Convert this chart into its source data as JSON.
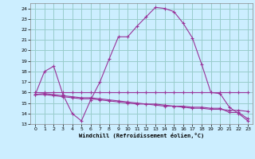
{
  "xlabel": "Windchill (Refroidissement éolien,°C)",
  "background_color": "#cceeff",
  "grid_color": "#99cccc",
  "line_color": "#993399",
  "xlim": [
    -0.5,
    23.5
  ],
  "ylim": [
    13,
    24.5
  ],
  "yticks": [
    13,
    14,
    15,
    16,
    17,
    18,
    19,
    20,
    21,
    22,
    23,
    24
  ],
  "xticks": [
    0,
    1,
    2,
    3,
    4,
    5,
    6,
    7,
    8,
    9,
    10,
    11,
    12,
    13,
    14,
    15,
    16,
    17,
    18,
    19,
    20,
    21,
    22,
    23
  ],
  "series": [
    {
      "x": [
        0,
        1,
        2,
        3,
        4,
        5,
        6,
        7,
        8,
        9,
        10,
        11,
        12,
        13,
        14,
        15,
        16,
        17,
        18,
        19,
        20,
        21,
        22,
        23
      ],
      "y": [
        15.8,
        18.0,
        18.5,
        15.8,
        14.0,
        13.3,
        15.3,
        17.0,
        19.2,
        21.3,
        21.3,
        22.3,
        23.2,
        24.1,
        24.0,
        23.7,
        22.6,
        21.2,
        18.7,
        16.0,
        15.9,
        14.6,
        14.0,
        13.3
      ]
    },
    {
      "x": [
        0,
        1,
        2,
        3,
        4,
        5,
        6,
        7,
        8,
        9,
        10,
        11,
        12,
        13,
        14,
        15,
        16,
        17,
        18,
        19,
        20,
        21,
        22,
        23
      ],
      "y": [
        16.0,
        16.0,
        16.0,
        16.0,
        16.0,
        16.0,
        16.0,
        16.0,
        16.0,
        16.0,
        16.0,
        16.0,
        16.0,
        16.0,
        16.0,
        16.0,
        16.0,
        16.0,
        16.0,
        16.0,
        16.0,
        16.0,
        16.0,
        16.0
      ]
    },
    {
      "x": [
        0,
        1,
        2,
        3,
        4,
        5,
        6,
        7,
        8,
        9,
        10,
        11,
        12,
        13,
        14,
        15,
        16,
        17,
        18,
        19,
        20,
        21,
        22,
        23
      ],
      "y": [
        15.8,
        15.8,
        15.7,
        15.6,
        15.5,
        15.4,
        15.4,
        15.3,
        15.2,
        15.1,
        15.0,
        14.9,
        14.9,
        14.8,
        14.7,
        14.7,
        14.6,
        14.5,
        14.5,
        14.4,
        14.4,
        14.3,
        14.3,
        14.2
      ]
    },
    {
      "x": [
        0,
        1,
        2,
        3,
        4,
        5,
        6,
        7,
        8,
        9,
        10,
        11,
        12,
        13,
        14,
        15,
        16,
        17,
        18,
        19,
        20,
        21,
        22,
        23
      ],
      "y": [
        15.8,
        15.9,
        15.8,
        15.7,
        15.6,
        15.5,
        15.5,
        15.4,
        15.3,
        15.2,
        15.1,
        15.0,
        14.9,
        14.9,
        14.8,
        14.7,
        14.7,
        14.6,
        14.6,
        14.5,
        14.5,
        14.1,
        14.1,
        13.5
      ]
    }
  ]
}
